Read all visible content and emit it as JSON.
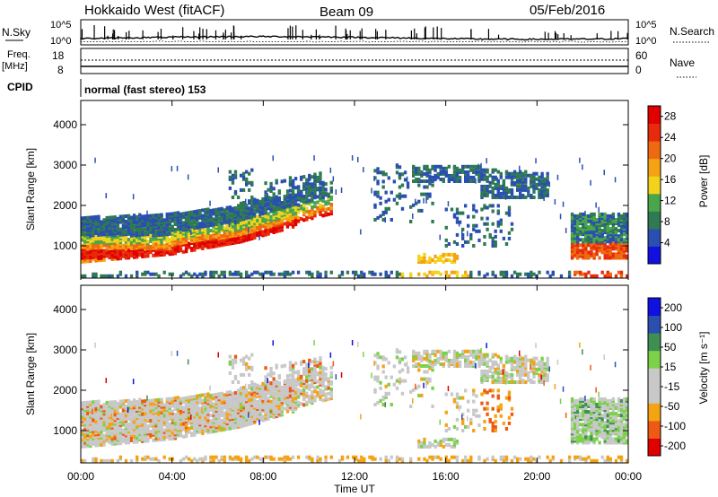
{
  "header": {
    "title": "Hokkaido West (fitACF)",
    "beam": "Beam 09",
    "date": "05/Feb/2016"
  },
  "status_panels": {
    "nsky_label": "N.Sky",
    "nsearch_label": "N.Search",
    "noise_ticks_left": [
      "10^5",
      "10^0"
    ],
    "noise_ticks_right": [
      "10^5",
      "10^0"
    ],
    "freq_label_1": "Freq.",
    "freq_label_2": "[MHz]",
    "freq_ticks": [
      "18",
      "8"
    ],
    "nave_label": "Nave",
    "nave_ticks": [
      "60",
      "0"
    ],
    "cpid_label": "CPID",
    "cpid_text": "normal (fast stereo) 153"
  },
  "colors": {
    "power_scale": [
      "#1010e0",
      "#2a4fb0",
      "#2f7a52",
      "#49a64a",
      "#f2d21c",
      "#f5a213",
      "#ee6a10",
      "#e82a0c",
      "#e00000"
    ],
    "velocity_scale": [
      "#e00000",
      "#ee5a14",
      "#f5a213",
      "#c8c8c8",
      "#c8c8c8",
      "#7bd24a",
      "#3f8f52",
      "#2a4fb0",
      "#1010e0"
    ]
  },
  "chart_data": [
    {
      "type": "heatmap",
      "panel": "power",
      "ylabel": "Slant Range [km]",
      "yticks": [
        "1000",
        "2000",
        "3000",
        "4000"
      ],
      "ylim": [
        200,
        4600
      ],
      "xlim_hours": [
        0,
        24
      ],
      "colorbar_label": "Power [dB]",
      "colorbar_ticks": [
        "4",
        "8",
        "12",
        "16",
        "20",
        "24",
        "28"
      ],
      "colorbar_range": [
        0,
        30
      ]
    },
    {
      "type": "heatmap",
      "panel": "velocity",
      "ylabel": "Slant Range [km]",
      "yticks": [
        "1000",
        "2000",
        "3000",
        "4000"
      ],
      "ylim": [
        200,
        4600
      ],
      "xlim_hours": [
        0,
        24
      ],
      "colorbar_label": "Velocity [m s⁻¹]",
      "colorbar_ticks": [
        "200",
        "100",
        "50",
        "15",
        "-15",
        "-50",
        "-100",
        "-200"
      ]
    }
  ],
  "xaxis": {
    "label": "Time UT",
    "ticks": [
      "00:00",
      "04:00",
      "08:00",
      "12:00",
      "16:00",
      "20:00",
      "00:00"
    ]
  }
}
